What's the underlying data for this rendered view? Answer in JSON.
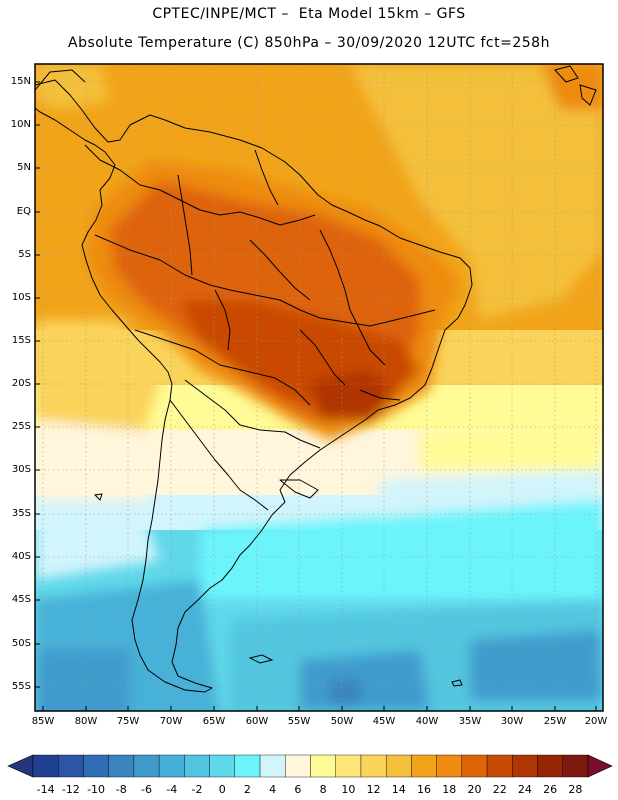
{
  "header": {
    "line1": "CPTEC/INPE/MCT –  Eta Model 15km – GFS",
    "line2": "Absolute Temperature (C) 850hPa – 30/09/2020 12UTC fct=258h"
  },
  "map": {
    "region": "South America",
    "variable": "Absolute Temperature (C) 850hPa",
    "lat_labels": [
      "15N",
      "10N",
      "5N",
      "EQ",
      "5S",
      "10S",
      "15S",
      "20S",
      "25S",
      "30S",
      "35S",
      "40S",
      "45S",
      "50S",
      "55S"
    ],
    "lon_labels": [
      "85W",
      "80W",
      "75W",
      "70W",
      "65W",
      "60W",
      "55W",
      "50W",
      "45W",
      "40W",
      "35W",
      "30W",
      "25W",
      "20W"
    ]
  },
  "colorbar": {
    "labels": [
      "-14",
      "-12",
      "-10",
      "-8",
      "-6",
      "-4",
      "-2",
      "0",
      "2",
      "4",
      "6",
      "8",
      "10",
      "12",
      "14",
      "16",
      "18",
      "20",
      "22",
      "24",
      "26",
      "28"
    ],
    "colors": [
      "#1f3f93",
      "#2a56a3",
      "#2f6db4",
      "#3a84c0",
      "#3f9bcd",
      "#46b1d8",
      "#52c6e0",
      "#5fd8ea",
      "#6cf4fb",
      "#d2f4fb",
      "#fff6dc",
      "#fffb96",
      "#fde577",
      "#fad35a",
      "#f4c03b",
      "#f1a41a",
      "#ee8b10",
      "#de6408",
      "#c94a05",
      "#b03604",
      "#962603",
      "#7d1a10"
    ],
    "end_low": "#26367a",
    "end_high": "#7a0d2c"
  }
}
